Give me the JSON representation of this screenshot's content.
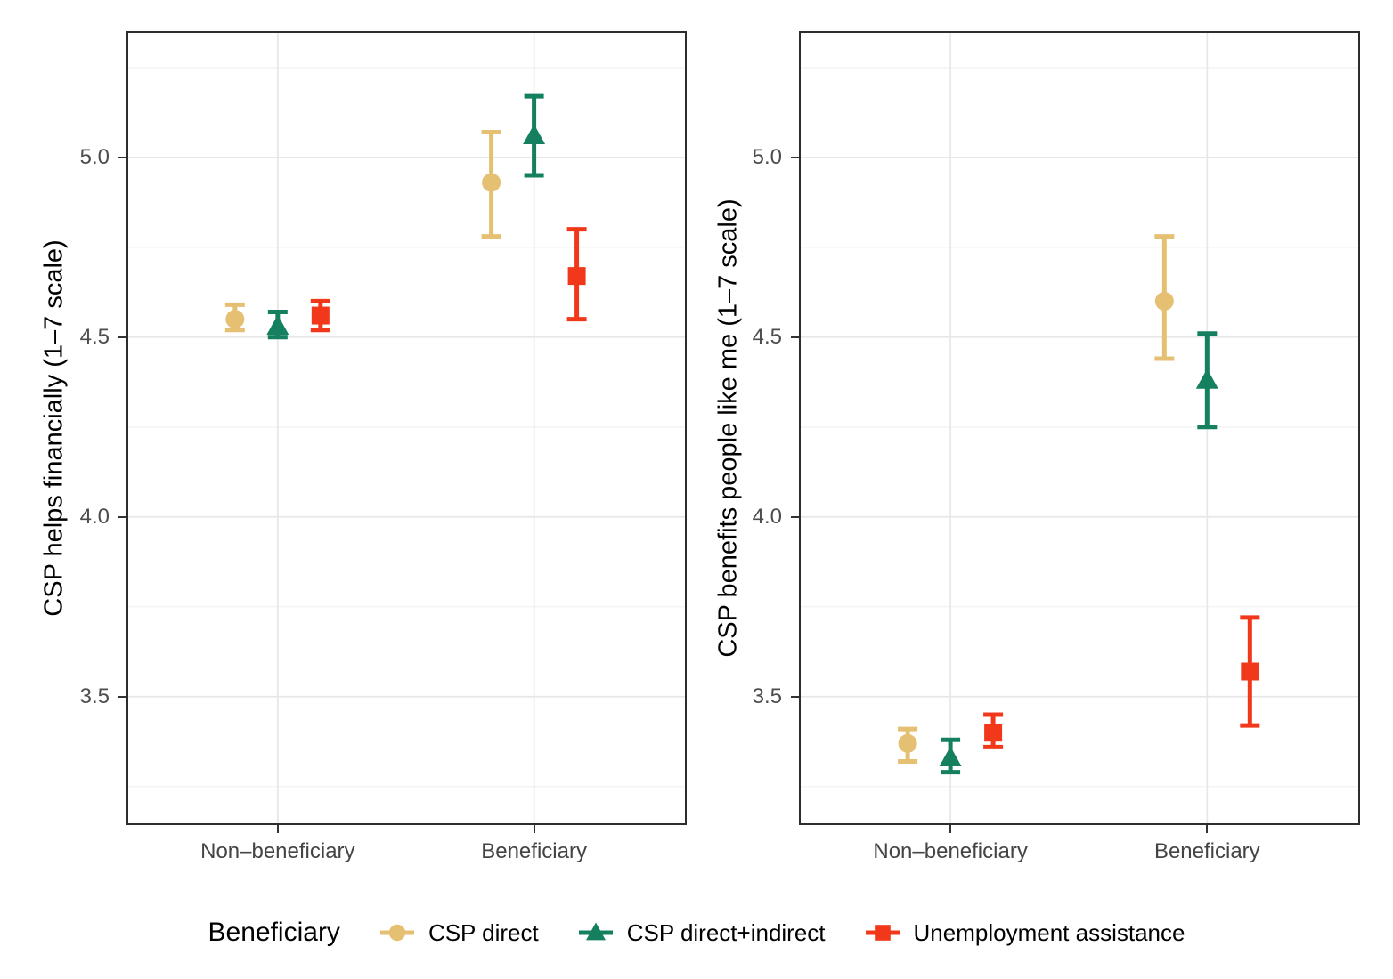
{
  "figure": {
    "background": "#ffffff"
  },
  "colors": {
    "csp_direct": "#E5C072",
    "csp_direct_indirect": "#14805F",
    "unemployment_assistance": "#F2381B",
    "grid_major": "#E7E7E7",
    "grid_minor": "#F2F2F2",
    "panel_border": "#2D2D2D",
    "tick_mark": "#333333",
    "tick_label_text": "#4d4d4d",
    "category_label_text": "#444444"
  },
  "legend": {
    "title": "Beneficiary",
    "position": "bottom",
    "entries": [
      {
        "label": "CSP direct",
        "marker": "circle",
        "color": "#E5C072"
      },
      {
        "label": "CSP direct+indirect",
        "marker": "triangle",
        "color": "#14805F"
      },
      {
        "label": "Unemployment assistance",
        "marker": "square",
        "color": "#F2381B"
      }
    ]
  },
  "chart_data": [
    {
      "type": "pointrange",
      "panel": "left",
      "title": "",
      "xlabel": "",
      "ylabel": "CSP helps financially (1–7 scale)",
      "categories": [
        "Non–beneficiary",
        "Beneficiary"
      ],
      "yticks": [
        3.5,
        4.0,
        4.5,
        5.0
      ],
      "yticks_minor": [
        3.25,
        3.75,
        4.25,
        4.75,
        5.25
      ],
      "ylim": [
        3.143,
        5.351
      ],
      "grid": "on",
      "series": [
        {
          "name": "CSP direct",
          "marker": "circle",
          "color": "#E5C072",
          "values": [
            {
              "category": "Non–beneficiary",
              "mean": 4.55,
              "lower": 4.52,
              "upper": 4.59
            },
            {
              "category": "Beneficiary",
              "mean": 4.93,
              "lower": 4.78,
              "upper": 5.07
            }
          ]
        },
        {
          "name": "CSP direct+indirect",
          "marker": "triangle",
          "color": "#14805F",
          "values": [
            {
              "category": "Non–beneficiary",
              "mean": 4.53,
              "lower": 4.5,
              "upper": 4.57
            },
            {
              "category": "Beneficiary",
              "mean": 5.06,
              "lower": 4.95,
              "upper": 5.17
            }
          ]
        },
        {
          "name": "Unemployment assistance",
          "marker": "square",
          "color": "#F2381B",
          "values": [
            {
              "category": "Non–beneficiary",
              "mean": 4.56,
              "lower": 4.52,
              "upper": 4.6
            },
            {
              "category": "Beneficiary",
              "mean": 4.67,
              "lower": 4.55,
              "upper": 4.8
            }
          ]
        }
      ]
    },
    {
      "type": "pointrange",
      "panel": "right",
      "title": "",
      "xlabel": "",
      "ylabel": "CSP benefits people like me (1–7 scale)",
      "categories": [
        "Non–beneficiary",
        "Beneficiary"
      ],
      "yticks": [
        3.5,
        4.0,
        4.5,
        5.0
      ],
      "yticks_minor": [
        3.25,
        3.75,
        4.25,
        4.75,
        5.25
      ],
      "ylim": [
        3.143,
        5.351
      ],
      "grid": "on",
      "series": [
        {
          "name": "CSP direct",
          "marker": "circle",
          "color": "#E5C072",
          "values": [
            {
              "category": "Non–beneficiary",
              "mean": 3.37,
              "lower": 3.32,
              "upper": 3.41
            },
            {
              "category": "Beneficiary",
              "mean": 4.6,
              "lower": 4.44,
              "upper": 4.78
            }
          ]
        },
        {
          "name": "CSP direct+indirect",
          "marker": "triangle",
          "color": "#14805F",
          "values": [
            {
              "category": "Non–beneficiary",
              "mean": 3.33,
              "lower": 3.29,
              "upper": 3.38
            },
            {
              "category": "Beneficiary",
              "mean": 4.38,
              "lower": 4.25,
              "upper": 4.51
            }
          ]
        },
        {
          "name": "Unemployment assistance",
          "marker": "square",
          "color": "#F2381B",
          "values": [
            {
              "category": "Non–beneficiary",
              "mean": 3.4,
              "lower": 3.36,
              "upper": 3.45
            },
            {
              "category": "Beneficiary",
              "mean": 3.57,
              "lower": 3.42,
              "upper": 3.72
            }
          ]
        }
      ]
    }
  ]
}
